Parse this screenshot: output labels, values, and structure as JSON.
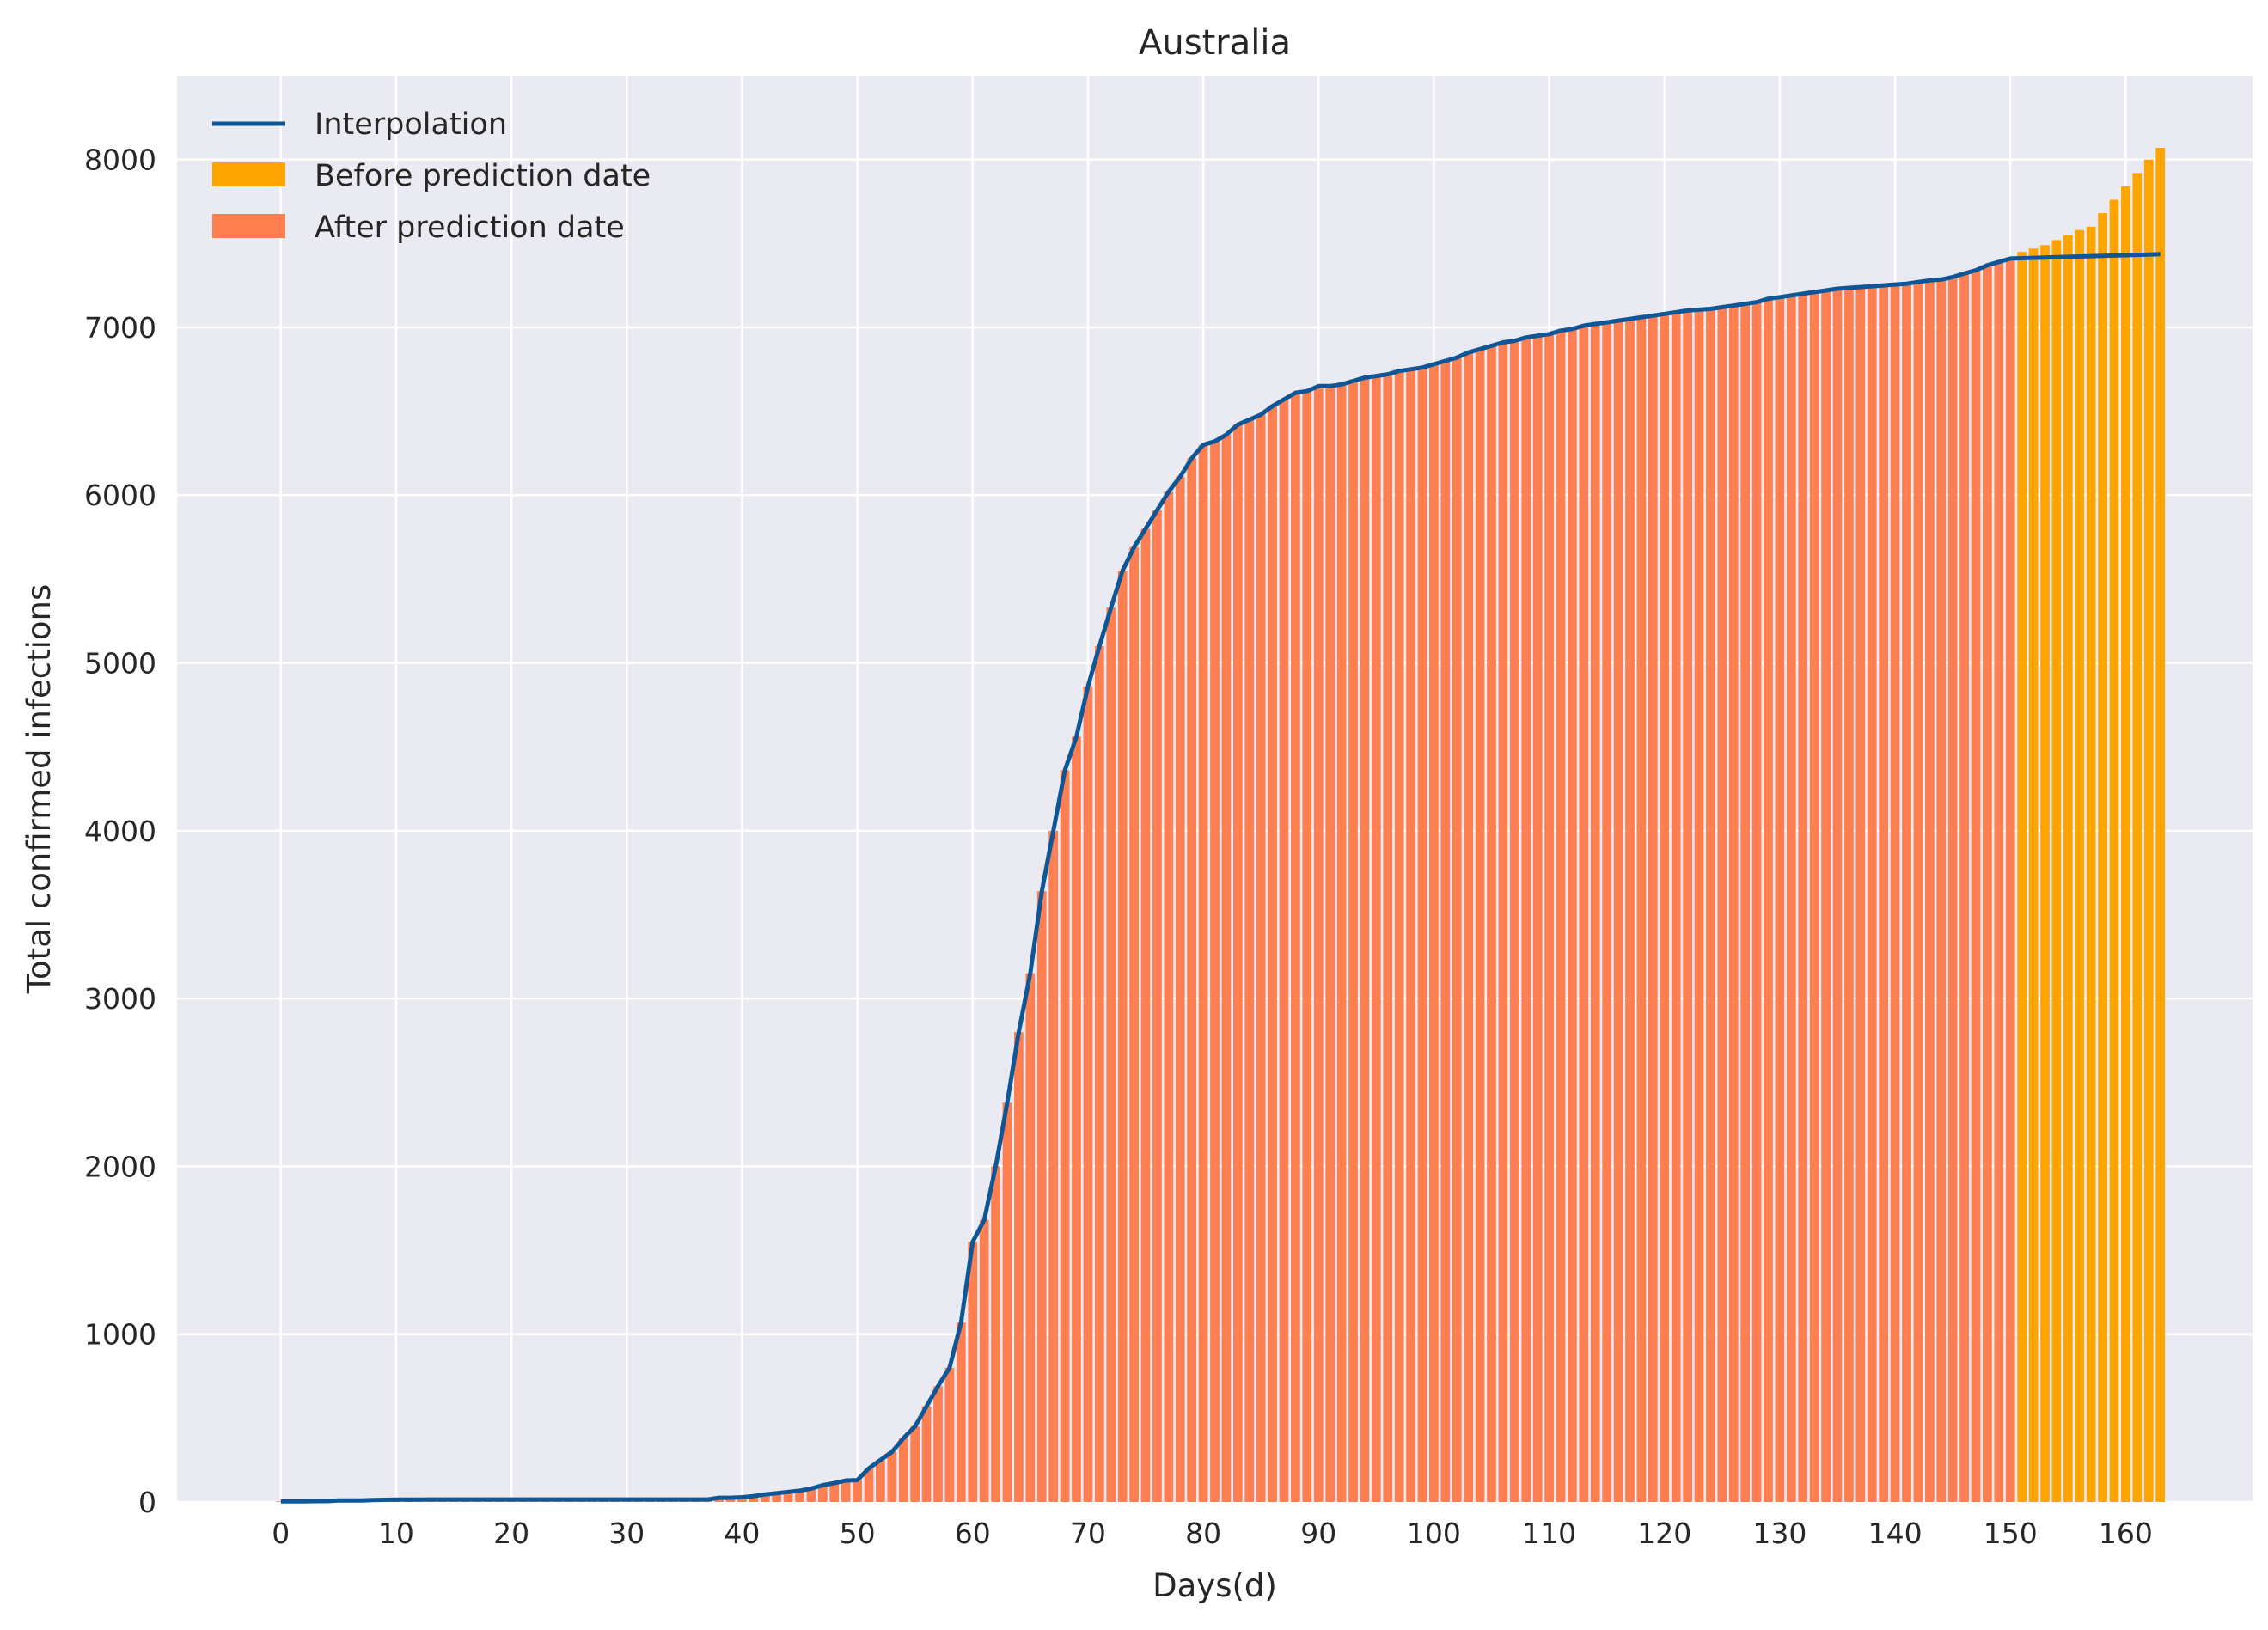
{
  "chart_data": {
    "type": "bar",
    "title": "Australia",
    "xlabel": "Days(d)",
    "ylabel": "Total confirmed infections",
    "xlim": [
      -9,
      171
    ],
    "ylim": [
      0,
      8500
    ],
    "x_ticks": [
      0,
      10,
      20,
      30,
      40,
      50,
      60,
      70,
      80,
      90,
      100,
      110,
      120,
      130,
      140,
      150,
      160
    ],
    "y_ticks": [
      0,
      1000,
      2000,
      3000,
      4000,
      5000,
      6000,
      7000,
      8000
    ],
    "grid": true,
    "legend_position": "top-left",
    "prediction_split_day": 150,
    "colors": {
      "background": "#EAEAF2",
      "grid": "#FFFFFF",
      "interpolation": "#0F5697",
      "before_prediction": "#FFA500",
      "after_prediction": "#FF7F50"
    },
    "legend": [
      {
        "label": "Interpolation",
        "kind": "line",
        "color": "#0F5697"
      },
      {
        "label": "Before prediction date",
        "kind": "patch",
        "color": "#FFA500"
      },
      {
        "label": "After prediction date",
        "kind": "patch",
        "color": "#FF7F50"
      }
    ],
    "series": [
      {
        "name": "After prediction date",
        "x_start": 0,
        "values": [
          4,
          4,
          4,
          5,
          5,
          9,
          9,
          9,
          12,
          13,
          14,
          14,
          14,
          15,
          15,
          15,
          15,
          15,
          15,
          15,
          15,
          15,
          15,
          15,
          15,
          15,
          15,
          15,
          15,
          15,
          15,
          15,
          15,
          15,
          15,
          15,
          15,
          15,
          25,
          25,
          28,
          35,
          45,
          52,
          60,
          67,
          80,
          100,
          112,
          128,
          130,
          200,
          250,
          298,
          380,
          450,
          570,
          690,
          800,
          1070,
          1550,
          1680,
          2000,
          2380,
          2800,
          3150,
          3640,
          4000,
          4360,
          4560,
          4860,
          5100,
          5330,
          5550,
          5690,
          5800,
          5910,
          6020,
          6110,
          6220,
          6300,
          6320,
          6360,
          6420,
          6450,
          6480,
          6530,
          6570,
          6610,
          6620,
          6650,
          6650,
          6660,
          6680,
          6700,
          6710,
          6720,
          6740,
          6750,
          6760,
          6780,
          6800,
          6820,
          6850,
          6870,
          6890,
          6910,
          6920,
          6940,
          6950,
          6960,
          6980,
          6990,
          7010,
          7020,
          7030,
          7040,
          7050,
          7060,
          7070,
          7080,
          7090,
          7100,
          7105,
          7110,
          7120,
          7130,
          7140,
          7150,
          7170,
          7180,
          7190,
          7200,
          7210,
          7220,
          7230,
          7235,
          7240,
          7245,
          7250,
          7255,
          7260,
          7270,
          7280,
          7285,
          7300,
          7320,
          7340,
          7370,
          7390,
          7410
        ]
      },
      {
        "name": "Before prediction date",
        "x_start": 151,
        "values": [
          7450,
          7470,
          7490,
          7520,
          7550,
          7580,
          7600,
          7680,
          7760,
          7840,
          7920,
          8000,
          8070
        ]
      },
      {
        "name": "Interpolation",
        "x_start": 0,
        "values": [
          4,
          4,
          4,
          5,
          5,
          9,
          9,
          9,
          12,
          13,
          14,
          14,
          14,
          15,
          15,
          15,
          15,
          15,
          15,
          15,
          15,
          15,
          15,
          15,
          15,
          15,
          15,
          15,
          15,
          15,
          15,
          15,
          15,
          15,
          15,
          15,
          15,
          15,
          25,
          25,
          28,
          35,
          45,
          52,
          60,
          67,
          80,
          100,
          112,
          128,
          130,
          200,
          250,
          298,
          380,
          450,
          570,
          690,
          800,
          1070,
          1550,
          1680,
          2000,
          2380,
          2800,
          3150,
          3640,
          4000,
          4360,
          4560,
          4860,
          5100,
          5330,
          5550,
          5690,
          5800,
          5910,
          6020,
          6110,
          6220,
          6300,
          6320,
          6360,
          6420,
          6450,
          6480,
          6530,
          6570,
          6610,
          6620,
          6650,
          6650,
          6660,
          6680,
          6700,
          6710,
          6720,
          6740,
          6750,
          6760,
          6780,
          6800,
          6820,
          6850,
          6870,
          6890,
          6910,
          6920,
          6940,
          6950,
          6960,
          6980,
          6990,
          7010,
          7020,
          7030,
          7040,
          7050,
          7060,
          7070,
          7080,
          7090,
          7100,
          7105,
          7110,
          7120,
          7130,
          7140,
          7150,
          7170,
          7180,
          7190,
          7200,
          7210,
          7220,
          7230,
          7235,
          7240,
          7245,
          7250,
          7255,
          7260,
          7270,
          7280,
          7285,
          7300,
          7320,
          7340,
          7370,
          7390,
          7410,
          7412,
          7414,
          7416,
          7418,
          7420,
          7422,
          7424,
          7426,
          7428,
          7430,
          7432,
          7434,
          7436
        ]
      }
    ]
  }
}
